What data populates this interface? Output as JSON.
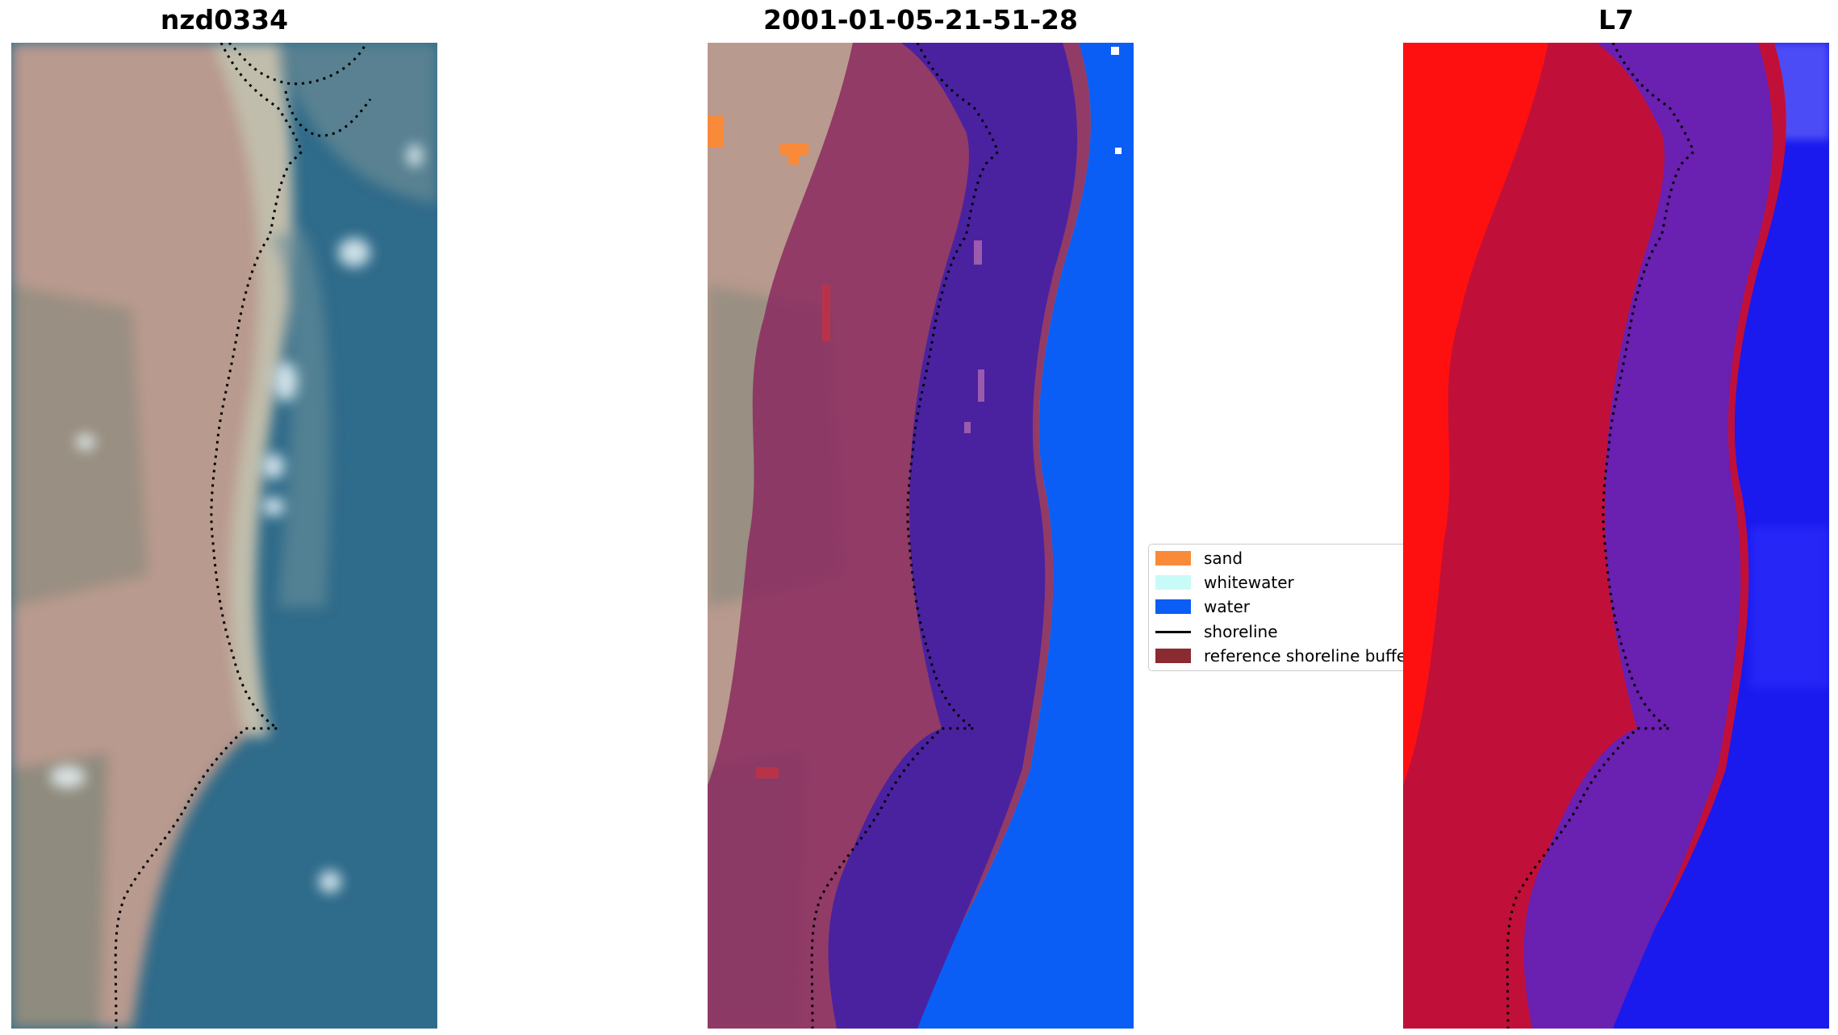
{
  "panels": [
    {
      "title": "nzd0334"
    },
    {
      "title": "2001-01-05-21-51-28"
    },
    {
      "title": "L7"
    }
  ],
  "legend": {
    "items": [
      {
        "label": "sand",
        "color": "#f98a3a",
        "kind": "patch"
      },
      {
        "label": "whitewater",
        "color": "#c8fbf7",
        "kind": "patch"
      },
      {
        "label": "water",
        "color": "#0a5ef5",
        "kind": "patch"
      },
      {
        "label": "shoreline",
        "color": "#000000",
        "kind": "line"
      },
      {
        "label": "reference shoreline buffer",
        "color": "#8b2a30",
        "kind": "patch"
      }
    ]
  },
  "colors": {
    "rgb_land": "#b89a8c",
    "rgb_water": "#2e6a8a",
    "buffer_overlay": "#8b2a60",
    "water_class": "#0a5ef5",
    "water_in_buffer": "#4a22a0",
    "l7_land": "#ff1010",
    "l7_buffer_land": "#c0103a",
    "l7_buffer_water": "#6a20b0",
    "l7_water": "#1a1aee"
  }
}
